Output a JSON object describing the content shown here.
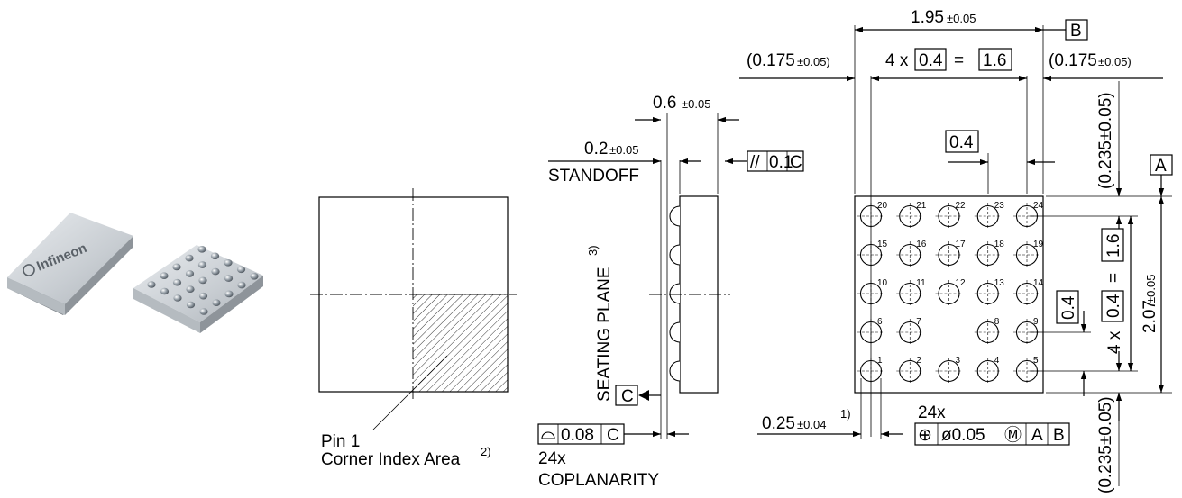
{
  "photo": {
    "logo_text": "Infineon"
  },
  "top_view": {
    "pin1_label": "Pin 1",
    "corner_label": "Corner Index Area",
    "corner_note": "2)"
  },
  "side_view": {
    "thickness": "0.6",
    "thickness_tol": "±0.05",
    "standoff": "0.2",
    "standoff_tol": "±0.05",
    "standoff_label": "STANDOFF",
    "seating_plane": "SEATING PLANE",
    "seating_note": "3)",
    "datum_c": "C",
    "parallel_symbol": "//",
    "parallel_value": "0.1",
    "parallel_ref": "C",
    "coplanarity_value": "0.08",
    "coplanarity_ref": "C",
    "coplanarity_count": "24x",
    "coplanarity_label": "COPLANARITY"
  },
  "bottom_view": {
    "width": "1.95",
    "width_tol": "±0.05",
    "datum_b": "B",
    "datum_a": "A",
    "edge_left": "(0.175",
    "edge_left_tol": "±0.05)",
    "edge_right": "(0.175",
    "edge_right_tol": "±0.05)",
    "pitch_prefix": "4 x",
    "pitch": "0.4",
    "pitch_eq": "=",
    "pitch_total": "1.6",
    "pitch_single": "0.4",
    "edge_top": "(0.235±0.05)",
    "edge_bottom": "(0.235±0.05)",
    "height": "2.07",
    "height_tol": "±0.05",
    "v_pitch_prefix": "4 x",
    "v_pitch": "0.4",
    "v_pitch_eq": "=",
    "v_pitch_total": "1.6",
    "v_pitch_single": "0.4",
    "ball_dia": "0.25",
    "ball_dia_tol": "±0.04",
    "ball_note": "1)",
    "ball_count": "24x",
    "pos_symbol": "⊕",
    "pos_value": "ø0.05",
    "pos_modifier": "Ⓜ",
    "pos_ref_a": "A",
    "pos_ref_b": "B",
    "pins": [
      {
        "n": "1",
        "row": 4,
        "col": 0
      },
      {
        "n": "2",
        "row": 4,
        "col": 1
      },
      {
        "n": "3",
        "row": 4,
        "col": 2
      },
      {
        "n": "4",
        "row": 4,
        "col": 3
      },
      {
        "n": "5",
        "row": 4,
        "col": 4
      },
      {
        "n": "6",
        "row": 3,
        "col": 0
      },
      {
        "n": "7",
        "row": 3,
        "col": 1
      },
      {
        "n": "8",
        "row": 3,
        "col": 3
      },
      {
        "n": "9",
        "row": 3,
        "col": 4
      },
      {
        "n": "10",
        "row": 2,
        "col": 0
      },
      {
        "n": "11",
        "row": 2,
        "col": 1
      },
      {
        "n": "12",
        "row": 2,
        "col": 2
      },
      {
        "n": "13",
        "row": 2,
        "col": 3
      },
      {
        "n": "14",
        "row": 2,
        "col": 4
      },
      {
        "n": "15",
        "row": 1,
        "col": 0
      },
      {
        "n": "16",
        "row": 1,
        "col": 1
      },
      {
        "n": "17",
        "row": 1,
        "col": 2
      },
      {
        "n": "18",
        "row": 1,
        "col": 3
      },
      {
        "n": "19",
        "row": 1,
        "col": 4
      },
      {
        "n": "20",
        "row": 0,
        "col": 0
      },
      {
        "n": "21",
        "row": 0,
        "col": 1
      },
      {
        "n": "22",
        "row": 0,
        "col": 2
      },
      {
        "n": "23",
        "row": 0,
        "col": 3
      },
      {
        "n": "24",
        "row": 0,
        "col": 4
      }
    ]
  }
}
